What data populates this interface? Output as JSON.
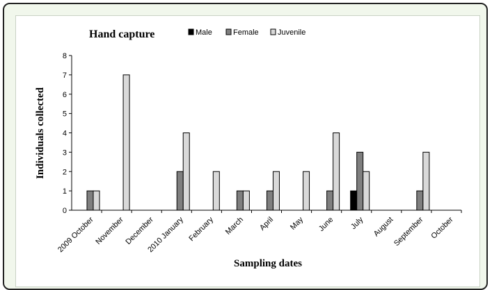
{
  "chart_data": {
    "type": "bar",
    "title": "Hand capture",
    "xlabel": "Sampling dates",
    "ylabel": "Individuals collected",
    "ylim": [
      0,
      8
    ],
    "yticks": [
      0,
      1,
      2,
      3,
      4,
      5,
      6,
      7,
      8
    ],
    "grid": false,
    "legend_position": "top",
    "categories": [
      "2009 October",
      "November",
      "December",
      "2010 January",
      "February",
      "March",
      "April",
      "May",
      "June",
      "July",
      "August",
      "September",
      "October"
    ],
    "series": [
      {
        "name": "Male",
        "color": "#000000",
        "values": [
          0,
          0,
          0,
          0,
          0,
          0,
          0,
          0,
          0,
          1,
          0,
          0,
          0
        ]
      },
      {
        "name": "Female",
        "color": "#7f7f7f",
        "values": [
          1,
          0,
          0,
          2,
          0,
          1,
          1,
          0,
          1,
          3,
          0,
          1,
          0
        ]
      },
      {
        "name": "Juvenile",
        "color": "#d9d9d9",
        "values": [
          1,
          7,
          0,
          4,
          2,
          1,
          2,
          2,
          4,
          2,
          0,
          3,
          0
        ]
      }
    ]
  }
}
